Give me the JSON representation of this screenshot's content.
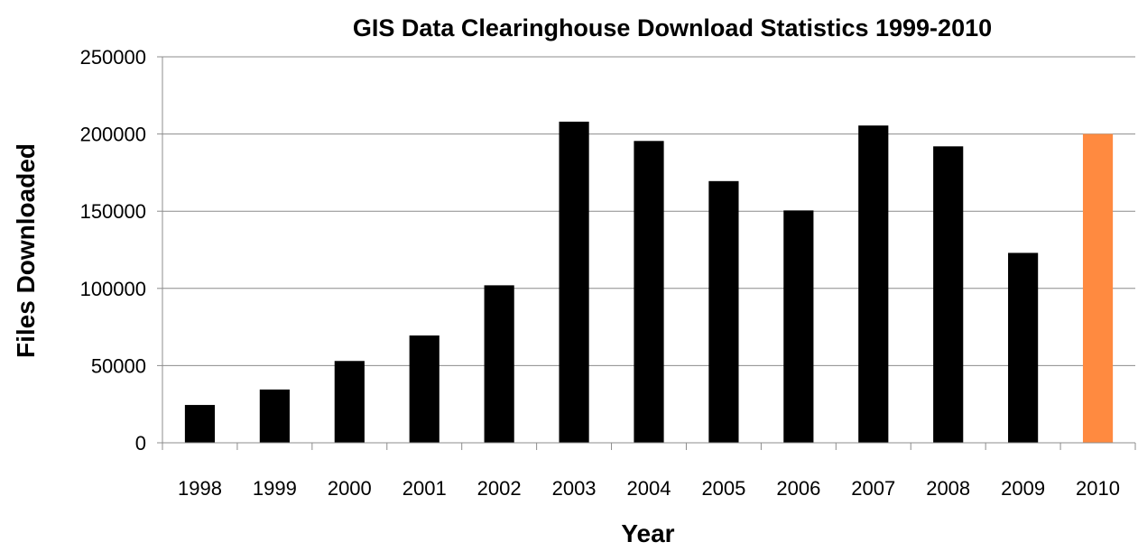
{
  "chart_data": {
    "type": "bar",
    "title": "GIS Data Clearinghouse Download Statistics 1999-2010",
    "xlabel": "Year",
    "ylabel": "Files Downloaded",
    "ylim": [
      0,
      250000
    ],
    "yticks": [
      "0",
      "50000",
      "100000",
      "150000",
      "200000",
      "250000"
    ],
    "grid": true,
    "categories": [
      "1998",
      "1999",
      "2000",
      "2001",
      "2002",
      "2003",
      "2004",
      "2005",
      "2006",
      "2007",
      "2008",
      "2009",
      "2010"
    ],
    "values": [
      24500,
      34500,
      53000,
      69500,
      102000,
      208000,
      195500,
      169500,
      150500,
      205500,
      192000,
      123000,
      200000
    ],
    "colors": [
      "#000000",
      "#000000",
      "#000000",
      "#000000",
      "#000000",
      "#000000",
      "#000000",
      "#000000",
      "#000000",
      "#000000",
      "#000000",
      "#000000",
      "#ff8a40"
    ]
  }
}
